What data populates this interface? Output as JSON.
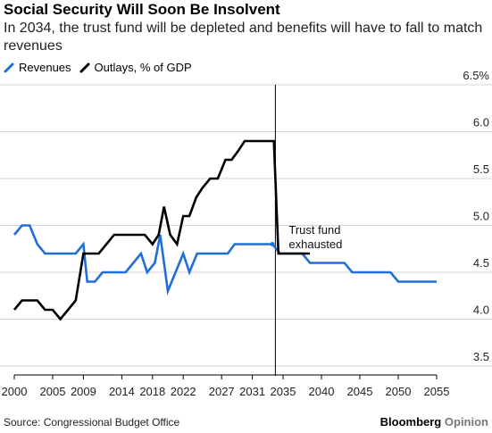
{
  "title": "Social Security Will Soon Be Insolvent",
  "subtitle": "In 2034, the trust fund will be depleted and benefits will have to fall to match revenues",
  "source": "Source: Congressional Budget Office",
  "brand": {
    "name": "Bloomberg",
    "section": "Opinion"
  },
  "colors": {
    "revenues": "#1f6fd6",
    "outlays": "#000000",
    "grid": "#d4d4d4",
    "annotation_line": "#000000"
  },
  "chart_data": {
    "type": "line",
    "ylabel": "",
    "xlabel": "",
    "ylim": [
      3.5,
      6.5
    ],
    "xlim": [
      2000,
      2055
    ],
    "grid": true,
    "legend_position": "top-left",
    "x_ticks": [
      "2000",
      "2005",
      "2009",
      "2014",
      "2018",
      "2022",
      "2027",
      "2031",
      "2035",
      "2040",
      "2045",
      "2050",
      "2055"
    ],
    "y_ticks": [
      "3.5",
      "4.0",
      "4.5",
      "5.0",
      "5.5",
      "6.0",
      "6.5%"
    ],
    "annotation": {
      "x": 2034,
      "text_line1": "Trust fund",
      "text_line2": "exhausted"
    },
    "series": [
      {
        "name": "Revenues",
        "color": "#1f6fd6",
        "points": [
          [
            2000,
            4.9
          ],
          [
            2001,
            5.0
          ],
          [
            2002,
            5.0
          ],
          [
            2003,
            4.8
          ],
          [
            2004,
            4.7
          ],
          [
            2005,
            4.7
          ],
          [
            2006,
            4.7
          ],
          [
            2007,
            4.7
          ],
          [
            2008,
            4.7
          ],
          [
            2009,
            4.8
          ],
          [
            2009.5,
            4.4
          ],
          [
            2010.5,
            4.4
          ],
          [
            2011.5,
            4.5
          ],
          [
            2012.5,
            4.5
          ],
          [
            2013.5,
            4.5
          ],
          [
            2014.5,
            4.5
          ],
          [
            2015.5,
            4.6
          ],
          [
            2016.5,
            4.7
          ],
          [
            2017.3,
            4.5
          ],
          [
            2018.3,
            4.6
          ],
          [
            2019,
            4.9
          ],
          [
            2020,
            4.3
          ],
          [
            2021,
            4.5
          ],
          [
            2022,
            4.7
          ],
          [
            2022.8,
            4.5
          ],
          [
            2023.8,
            4.7
          ],
          [
            2024.8,
            4.7
          ],
          [
            2025.8,
            4.7
          ],
          [
            2026.8,
            4.7
          ],
          [
            2027.8,
            4.7
          ],
          [
            2028.7,
            4.8
          ],
          [
            2029.7,
            4.8
          ],
          [
            2030.7,
            4.8
          ],
          [
            2031.7,
            4.8
          ],
          [
            2032.6,
            4.8
          ],
          [
            2033.6,
            4.8
          ],
          [
            2034.6,
            4.7
          ],
          [
            2037.5,
            4.7
          ],
          [
            2038.5,
            4.6
          ],
          [
            2043,
            4.6
          ],
          [
            2044,
            4.5
          ],
          [
            2049,
            4.5
          ],
          [
            2050,
            4.4
          ],
          [
            2055,
            4.4
          ]
        ]
      },
      {
        "name": "Outlays, % of GDP",
        "color": "#000000",
        "points": [
          [
            2000,
            4.1
          ],
          [
            2001,
            4.2
          ],
          [
            2002,
            4.2
          ],
          [
            2003,
            4.2
          ],
          [
            2004,
            4.1
          ],
          [
            2005,
            4.1
          ],
          [
            2006,
            4.0
          ],
          [
            2007,
            4.1
          ],
          [
            2008,
            4.2
          ],
          [
            2009,
            4.7
          ],
          [
            2010,
            4.7
          ],
          [
            2011,
            4.7
          ],
          [
            2012,
            4.8
          ],
          [
            2013,
            4.9
          ],
          [
            2014,
            4.9
          ],
          [
            2015,
            4.9
          ],
          [
            2016,
            4.9
          ],
          [
            2017,
            4.9
          ],
          [
            2018,
            4.8
          ],
          [
            2018.8,
            4.9
          ],
          [
            2019.5,
            5.2
          ],
          [
            2020.3,
            4.9
          ],
          [
            2021.2,
            4.8
          ],
          [
            2022,
            5.1
          ],
          [
            2022.8,
            5.1
          ],
          [
            2023.7,
            5.3
          ],
          [
            2024.5,
            5.4
          ],
          [
            2025.5,
            5.5
          ],
          [
            2026.5,
            5.5
          ],
          [
            2027.5,
            5.7
          ],
          [
            2028.3,
            5.7
          ],
          [
            2029.2,
            5.8
          ],
          [
            2030,
            5.9
          ],
          [
            2031,
            5.9
          ],
          [
            2032,
            5.9
          ],
          [
            2033.8,
            5.9
          ],
          [
            2034.4,
            4.7
          ],
          [
            2038.5,
            4.7
          ]
        ]
      }
    ]
  }
}
